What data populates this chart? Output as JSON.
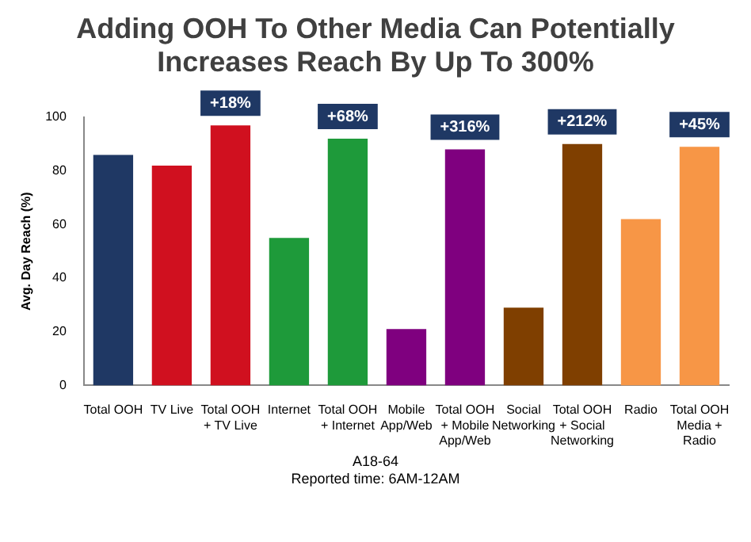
{
  "chart_data": {
    "type": "bar",
    "title": "Adding OOH To Other Media Can Potentially Increases Reach By Up To 300%",
    "ylabel": "Avg. Day Reach (%)",
    "categories": [
      "Total OOH",
      "TV Live",
      "Total OOH + TV Live",
      "Internet",
      "Total OOH + Internet",
      "Mobile App/Web",
      "Total OOH + Mobile App/Web",
      "Social Networking",
      "Total OOH + Social Networking",
      "Radio",
      "Total OOH Media + Radio"
    ],
    "values": [
      86,
      82,
      97,
      55,
      92,
      21,
      88,
      29,
      90,
      62,
      89
    ],
    "colors": [
      "#1f3864",
      "#d0101f",
      "#d0101f",
      "#1e9a3a",
      "#1e9a3a",
      "#7f007f",
      "#7f007f",
      "#7f3f00",
      "#7f3f00",
      "#f79646",
      "#f79646"
    ],
    "ylim": [
      0,
      100
    ],
    "yticks": [
      0,
      20,
      40,
      60,
      80,
      100
    ],
    "grid": false,
    "legend": false,
    "annotations": [
      {
        "text": "+18%",
        "x": "Total OOH + TV Live",
        "y": 97
      },
      {
        "text": "+68%",
        "x": "Total OOH + Internet",
        "y": 92
      },
      {
        "text": "+316%",
        "x": "Total OOH + Mobile App/Web",
        "y": 88
      },
      {
        "text": "+212%",
        "x": "Total OOH + Social Networking",
        "y": 90
      },
      {
        "text": "+45%",
        "x": "Total OOH Media + Radio",
        "y": 89
      },
      "A18-64",
      "Reported time: 6AM-12AM"
    ]
  }
}
